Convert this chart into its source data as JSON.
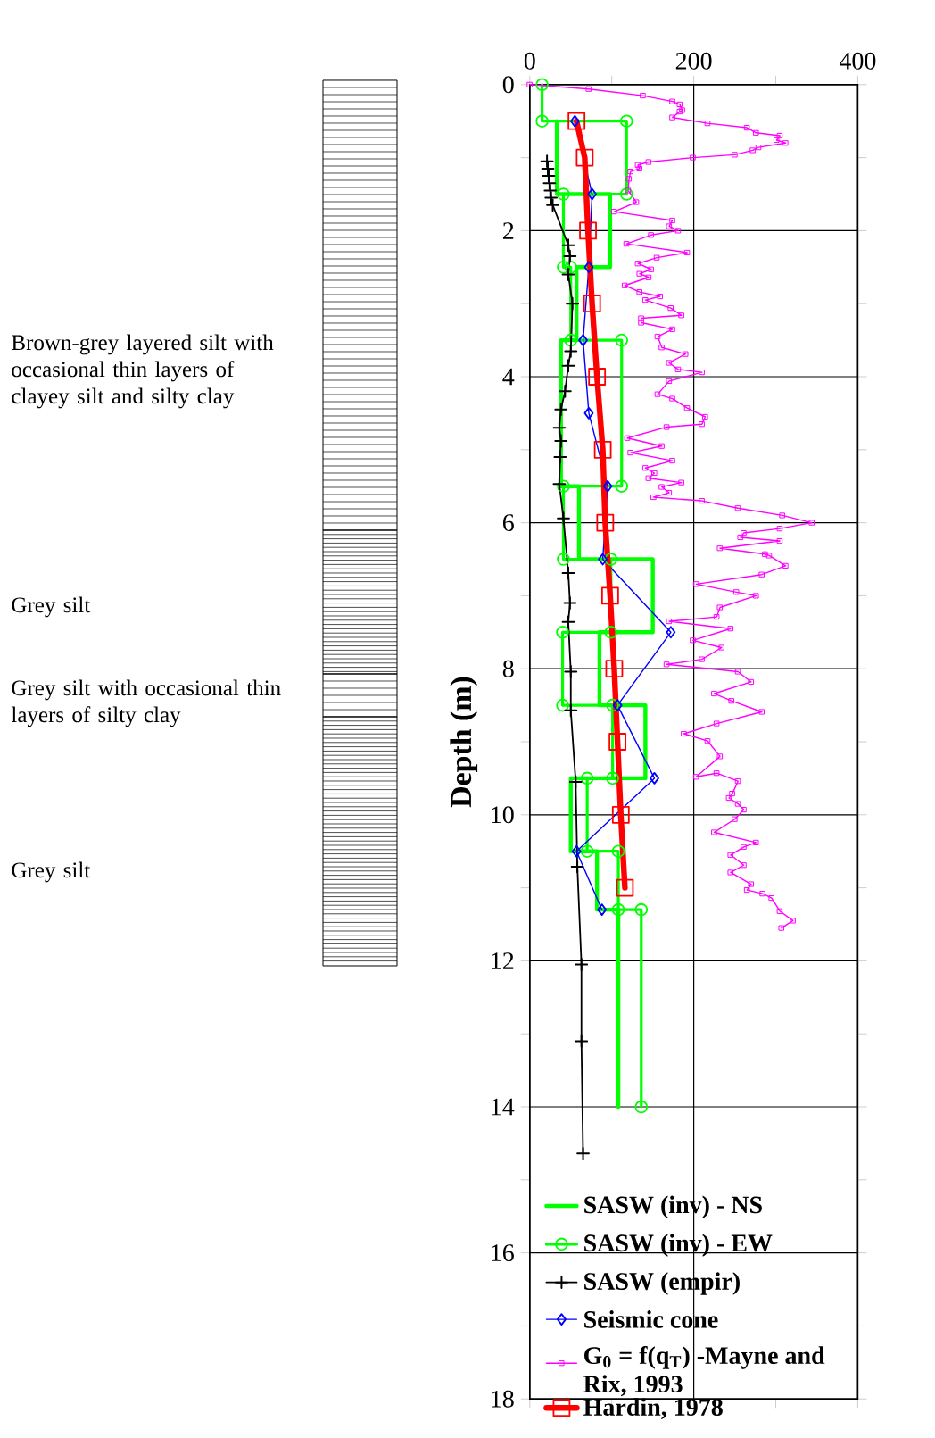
{
  "chart_data": {
    "type": "line",
    "ylabel": "Depth (m)",
    "xlim": [
      0,
      400
    ],
    "xticks": [
      0,
      {
        "value": 100,
        "label": null
      },
      200,
      {
        "value": 300,
        "label": null
      },
      400
    ],
    "ylim": [
      18,
      0
    ],
    "yticks": [
      0,
      {
        "value": 1,
        "label": null
      },
      2,
      {
        "value": 3,
        "label": null
      },
      4,
      {
        "value": 5,
        "label": null
      },
      6,
      {
        "value": 7,
        "label": null
      },
      8,
      {
        "value": 9,
        "label": null
      },
      10,
      {
        "value": 11,
        "label": null
      },
      12,
      {
        "value": 13,
        "label": null
      },
      14,
      {
        "value": 15,
        "label": null
      },
      16,
      {
        "value": 17,
        "label": null
      },
      18
    ],
    "grid": true,
    "legend": "bottom",
    "annotations": [
      "Brown-grey layered silt with occasional thin layers of clayey silt and silty clay",
      "Grey silt",
      "Grey silt with occasional thin layers of silty clay",
      "Grey silt"
    ],
    "series": [
      {
        "name": "SASW (inv) - NS",
        "color": "#00ff00",
        "marker": "none",
        "x": [
          33,
          33,
          98,
          98,
          57,
          57,
          38,
          38,
          60,
          60,
          150,
          150,
          85,
          85,
          141,
          141,
          50,
          50,
          82,
          82,
          108,
          108
        ],
        "values": [
          0.5,
          1.5,
          1.5,
          2.5,
          2.5,
          3.5,
          3.5,
          5.5,
          5.5,
          6.5,
          6.5,
          7.5,
          7.5,
          8.5,
          8.5,
          9.5,
          9.5,
          10.5,
          10.5,
          11.3,
          11.3,
          14
        ]
      },
      {
        "name": "SASW (inv) - EW",
        "color": "#00ff00",
        "marker": "circle",
        "x": [
          15,
          15,
          118,
          118,
          41,
          41,
          50,
          50,
          112,
          112,
          41,
          41,
          99,
          99,
          40,
          40,
          101,
          101,
          70,
          70,
          108,
          108,
          136,
          136
        ],
        "values": [
          0,
          0.5,
          0.5,
          1.5,
          1.5,
          2.5,
          2.5,
          3.5,
          3.5,
          5.5,
          5.5,
          6.5,
          6.5,
          7.5,
          7.5,
          8.5,
          8.5,
          9.5,
          9.5,
          10.5,
          10.5,
          11.3,
          11.3,
          14
        ]
      },
      {
        "name": "SASW (empir)",
        "color": "#000000",
        "marker": "cross",
        "x": [
          21,
          22,
          23,
          24,
          25,
          26,
          28,
          47,
          49,
          47,
          52,
          50,
          47,
          43,
          38,
          36,
          38,
          37,
          36,
          41,
          47,
          49,
          47,
          50,
          50,
          56,
          58,
          63,
          63,
          65
        ],
        "values": [
          1.05,
          1.15,
          1.25,
          1.35,
          1.45,
          1.55,
          1.65,
          2.2,
          2.35,
          2.6,
          3.0,
          3.65,
          3.85,
          4.2,
          4.45,
          4.7,
          4.88,
          5.1,
          5.47,
          5.94,
          6.69,
          7.1,
          7.36,
          8.04,
          8.57,
          9.55,
          10.71,
          12.05,
          13.1,
          14.64
        ]
      },
      {
        "name": "Seismic cone",
        "color": "#0000ff",
        "marker": "diamond",
        "x": [
          55,
          76,
          72,
          65,
          72,
          95,
          89,
          172,
          107,
          152,
          57,
          88
        ],
        "values": [
          0.5,
          1.5,
          2.5,
          3.5,
          4.5,
          5.5,
          6.5,
          7.5,
          8.5,
          9.5,
          10.5,
          11.3
        ]
      },
      {
        "name": "G$_{0}$ = f(q$_{T}$) -Mayne and Rix, 1993",
        "color": "#ff00ff",
        "marker": "square",
        "x": [
          0,
          72,
          138,
          174,
          183,
          186,
          183,
          174,
          217,
          265,
          276,
          305,
          301,
          312,
          279,
          272,
          250,
          199,
          145,
          132,
          134,
          123,
          121,
          120,
          130,
          103,
          174,
          170,
          181,
          148,
          118,
          192,
          155,
          132,
          148,
          134,
          145,
          116,
          134,
          159,
          141,
          172,
          185,
          136,
          136,
          174,
          156,
          161,
          190,
          170,
          181,
          210,
          170,
          156,
          174,
          192,
          214,
          210,
          167,
          119,
          161,
          123,
          174,
          141,
          152,
          145,
          185,
          161,
          170,
          151,
          210,
          254,
          308,
          344,
          305,
          261,
          257,
          305,
          232,
          287,
          292,
          312,
          283,
          203,
          252,
          276,
          232,
          228,
          170,
          245,
          199,
          234,
          210,
          167,
          254,
          270,
          225,
          246,
          283,
          228,
          188,
          217,
          232,
          203,
          228,
          254,
          247,
          243,
          254,
          261,
          250,
          225,
          276,
          261,
          245,
          261,
          245,
          270,
          265,
          284,
          295,
          305,
          321,
          307
        ],
        "values": [
          0,
          0.06,
          0.15,
          0.23,
          0.27,
          0.35,
          0.37,
          0.45,
          0.53,
          0.59,
          0.66,
          0.7,
          0.76,
          0.8,
          0.86,
          0.9,
          0.96,
          1.0,
          1.06,
          1.1,
          1.15,
          1.19,
          1.29,
          1.45,
          1.61,
          1.74,
          1.86,
          1.94,
          2.0,
          2.06,
          2.18,
          2.3,
          2.37,
          2.45,
          2.53,
          2.59,
          2.64,
          2.75,
          2.84,
          2.9,
          2.95,
          3.06,
          3.16,
          3.2,
          3.26,
          3.35,
          3.45,
          3.6,
          3.69,
          3.81,
          3.9,
          3.94,
          4.06,
          4.24,
          4.3,
          4.43,
          4.55,
          4.65,
          4.69,
          4.84,
          4.95,
          5.04,
          5.15,
          5.25,
          5.32,
          5.39,
          5.45,
          5.51,
          5.59,
          5.65,
          5.7,
          5.8,
          5.9,
          6.0,
          6.08,
          6.14,
          6.2,
          6.25,
          6.35,
          6.43,
          6.45,
          6.59,
          6.71,
          6.84,
          6.95,
          7.0,
          7.16,
          7.29,
          7.35,
          7.45,
          7.61,
          7.71,
          7.87,
          7.94,
          8.04,
          8.18,
          8.34,
          8.44,
          8.59,
          8.75,
          8.89,
          8.99,
          9.2,
          9.48,
          9.43,
          9.54,
          9.71,
          9.77,
          9.85,
          9.93,
          10.06,
          10.24,
          10.38,
          10.44,
          10.55,
          10.69,
          10.79,
          10.95,
          11.03,
          11.08,
          11.14,
          11.32,
          11.45,
          11.55
        ]
      },
      {
        "name": "Hardin, 1978",
        "color": "#ff0000",
        "marker": "square",
        "x": [
          57,
          67,
          71,
          76,
          82,
          89,
          92,
          98,
          103,
          107,
          111,
          116
        ],
        "values": [
          0.5,
          1,
          2,
          3,
          4,
          5,
          6,
          7,
          8,
          9,
          10,
          11
        ]
      }
    ]
  }
}
